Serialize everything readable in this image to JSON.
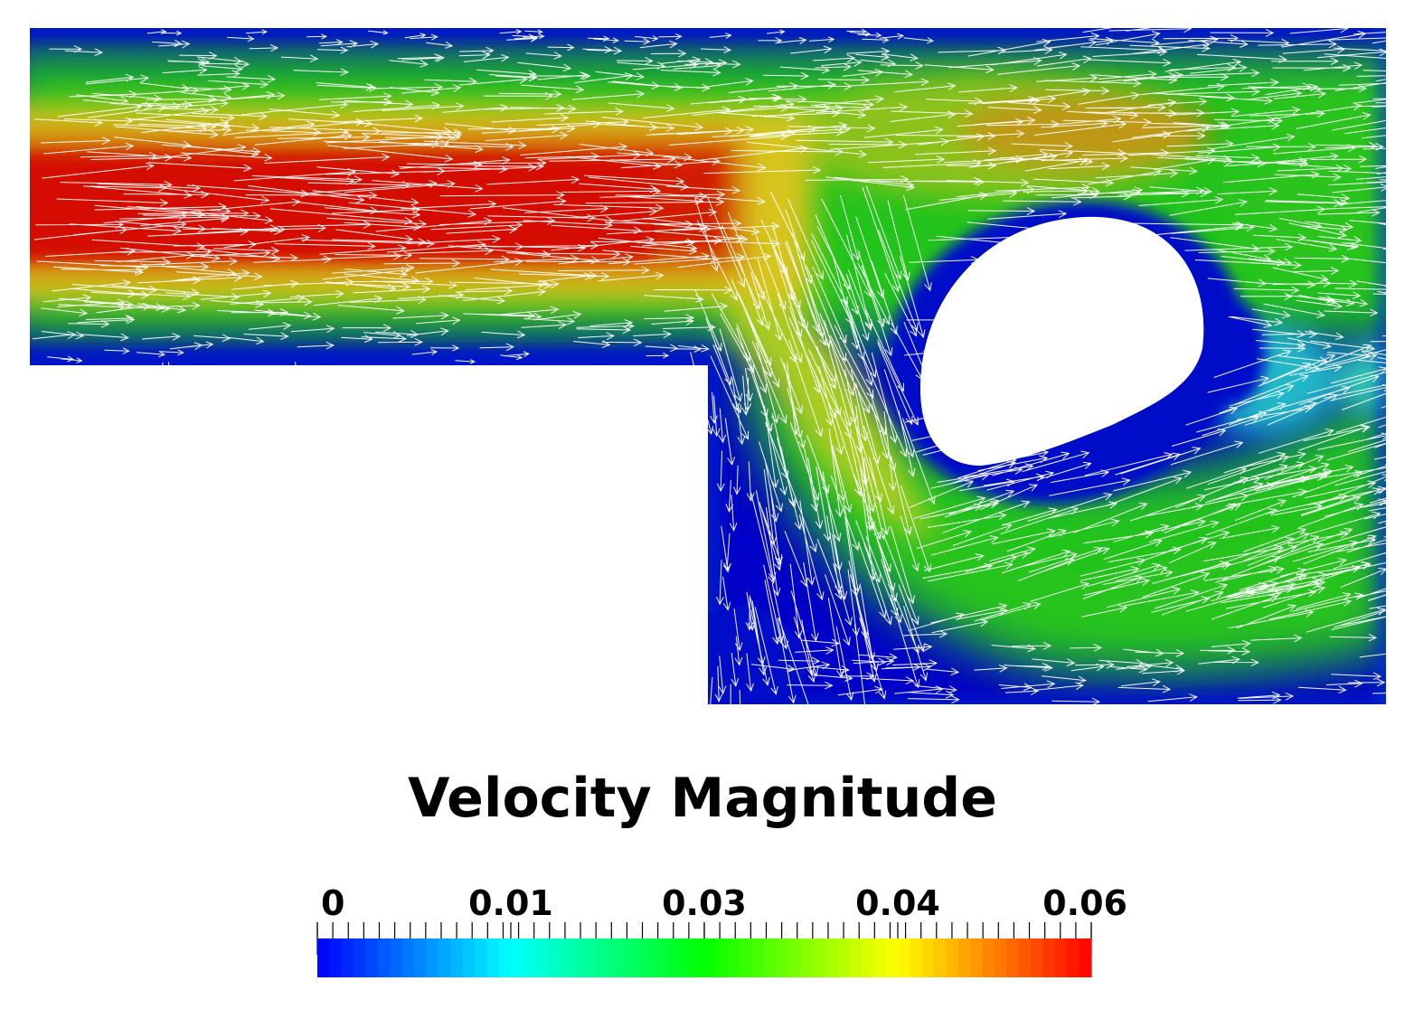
{
  "legend": {
    "title": "Velocity Magnitude",
    "range": [
      0,
      0.06
    ],
    "tick_labels": [
      "0",
      "0.01",
      "0.03",
      "0.04",
      "0.06"
    ],
    "colormap": [
      "#0000ff",
      "#00ffff",
      "#00ff00",
      "#ffff00",
      "#ff0000"
    ],
    "colorbar_bands": 64
  },
  "colors": {
    "background": "#ffffff",
    "vectors": "#ffffff",
    "low": "#0000c8",
    "mid": "#22c41a",
    "high": "#d01800"
  }
}
